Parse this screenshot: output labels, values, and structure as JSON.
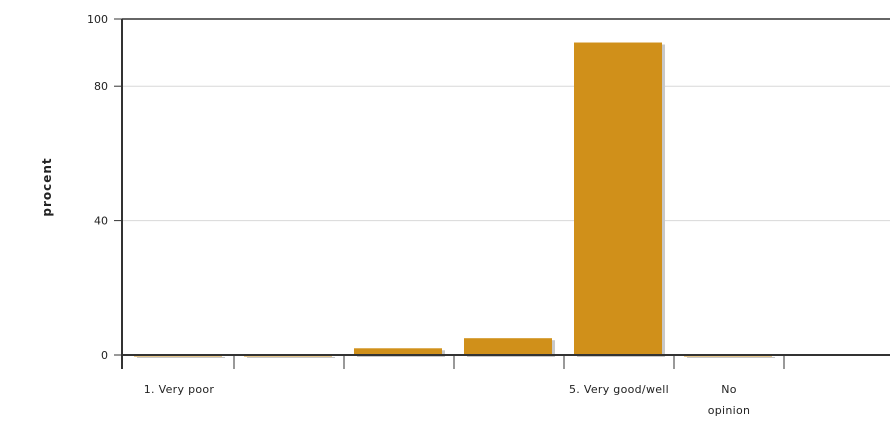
{
  "chart_data": {
    "type": "bar",
    "ylabel": "procent",
    "xlabel": "",
    "ylim": [
      0,
      100
    ],
    "yticks": [
      0,
      40,
      80,
      100
    ],
    "grid": true,
    "categories": [
      "1. Very poor",
      "",
      "",
      "",
      "5. Very good/well",
      "No opinion"
    ],
    "category_labels": [
      [
        "1. Very poor"
      ],
      [],
      [],
      [],
      [
        "5. Very good/well"
      ],
      [
        "No",
        "opinion"
      ]
    ],
    "values": [
      0,
      0,
      2,
      5,
      93,
      0
    ],
    "colors": {
      "bar": "#D0901A",
      "bar_shadow": "#C8C8C8",
      "axis": "#333333",
      "grid": "#D8D8D8"
    }
  }
}
